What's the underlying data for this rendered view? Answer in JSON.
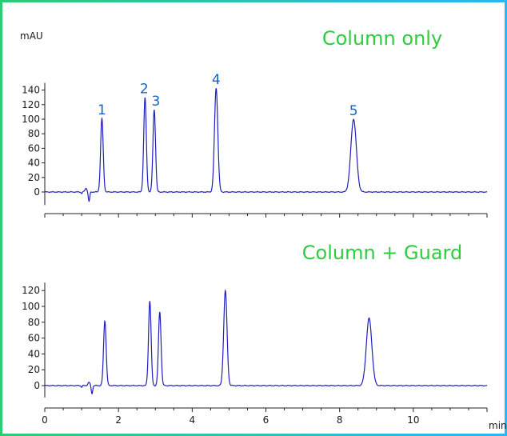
{
  "colors": {
    "frame_gradient_start": "#2ecc71",
    "frame_gradient_end": "#29b6f6",
    "trace": "#1f1fbf",
    "peak_label": "#1565c0",
    "panel_title": "#2ecc40",
    "axis": "#222222"
  },
  "chart_data": [
    {
      "type": "line",
      "title": "Column only",
      "ylabel": "mAU",
      "xlabel": "",
      "xlim": [
        0,
        12
      ],
      "ylim": [
        -18,
        150
      ],
      "yticks": [
        0,
        20,
        40,
        60,
        80,
        100,
        120,
        140
      ],
      "yticks_labels": [
        "0",
        "20",
        "40",
        "60",
        "80",
        "100",
        "120",
        "140"
      ],
      "peaks": [
        {
          "label": "1",
          "t": 1.55,
          "height": 101,
          "width": 0.035
        },
        {
          "label": "2",
          "t": 2.72,
          "height": 130,
          "width": 0.035
        },
        {
          "label": "3",
          "t": 2.97,
          "height": 113,
          "width": 0.035
        },
        {
          "label": "4",
          "t": 4.65,
          "height": 143,
          "width": 0.045
        },
        {
          "label": "5",
          "t": 8.38,
          "height": 100,
          "width": 0.075
        }
      ],
      "disturbance": {
        "t": 1.2,
        "dip": -13,
        "bump": 5
      },
      "grid": false
    },
    {
      "type": "line",
      "title": "Column + Guard",
      "ylabel": "",
      "xlabel": "min",
      "xlim": [
        0,
        12
      ],
      "ylim": [
        -15,
        130
      ],
      "yticks": [
        0,
        20,
        40,
        60,
        80,
        100,
        120
      ],
      "yticks_labels": [
        "0",
        "20",
        "40",
        "60",
        "80",
        "100",
        "120"
      ],
      "xticks": [
        0,
        2,
        4,
        6,
        8,
        10
      ],
      "xticks_labels": [
        "0",
        "2",
        "4",
        "6",
        "8",
        "10"
      ],
      "peaks": [
        {
          "t": 1.63,
          "height": 82,
          "width": 0.035
        },
        {
          "t": 2.85,
          "height": 107,
          "width": 0.035
        },
        {
          "t": 3.12,
          "height": 93,
          "width": 0.035
        },
        {
          "t": 4.9,
          "height": 120,
          "width": 0.045
        },
        {
          "t": 8.8,
          "height": 85,
          "width": 0.075
        }
      ],
      "disturbance": {
        "t": 1.28,
        "dip": -10,
        "bump": 4
      },
      "grid": false
    }
  ]
}
